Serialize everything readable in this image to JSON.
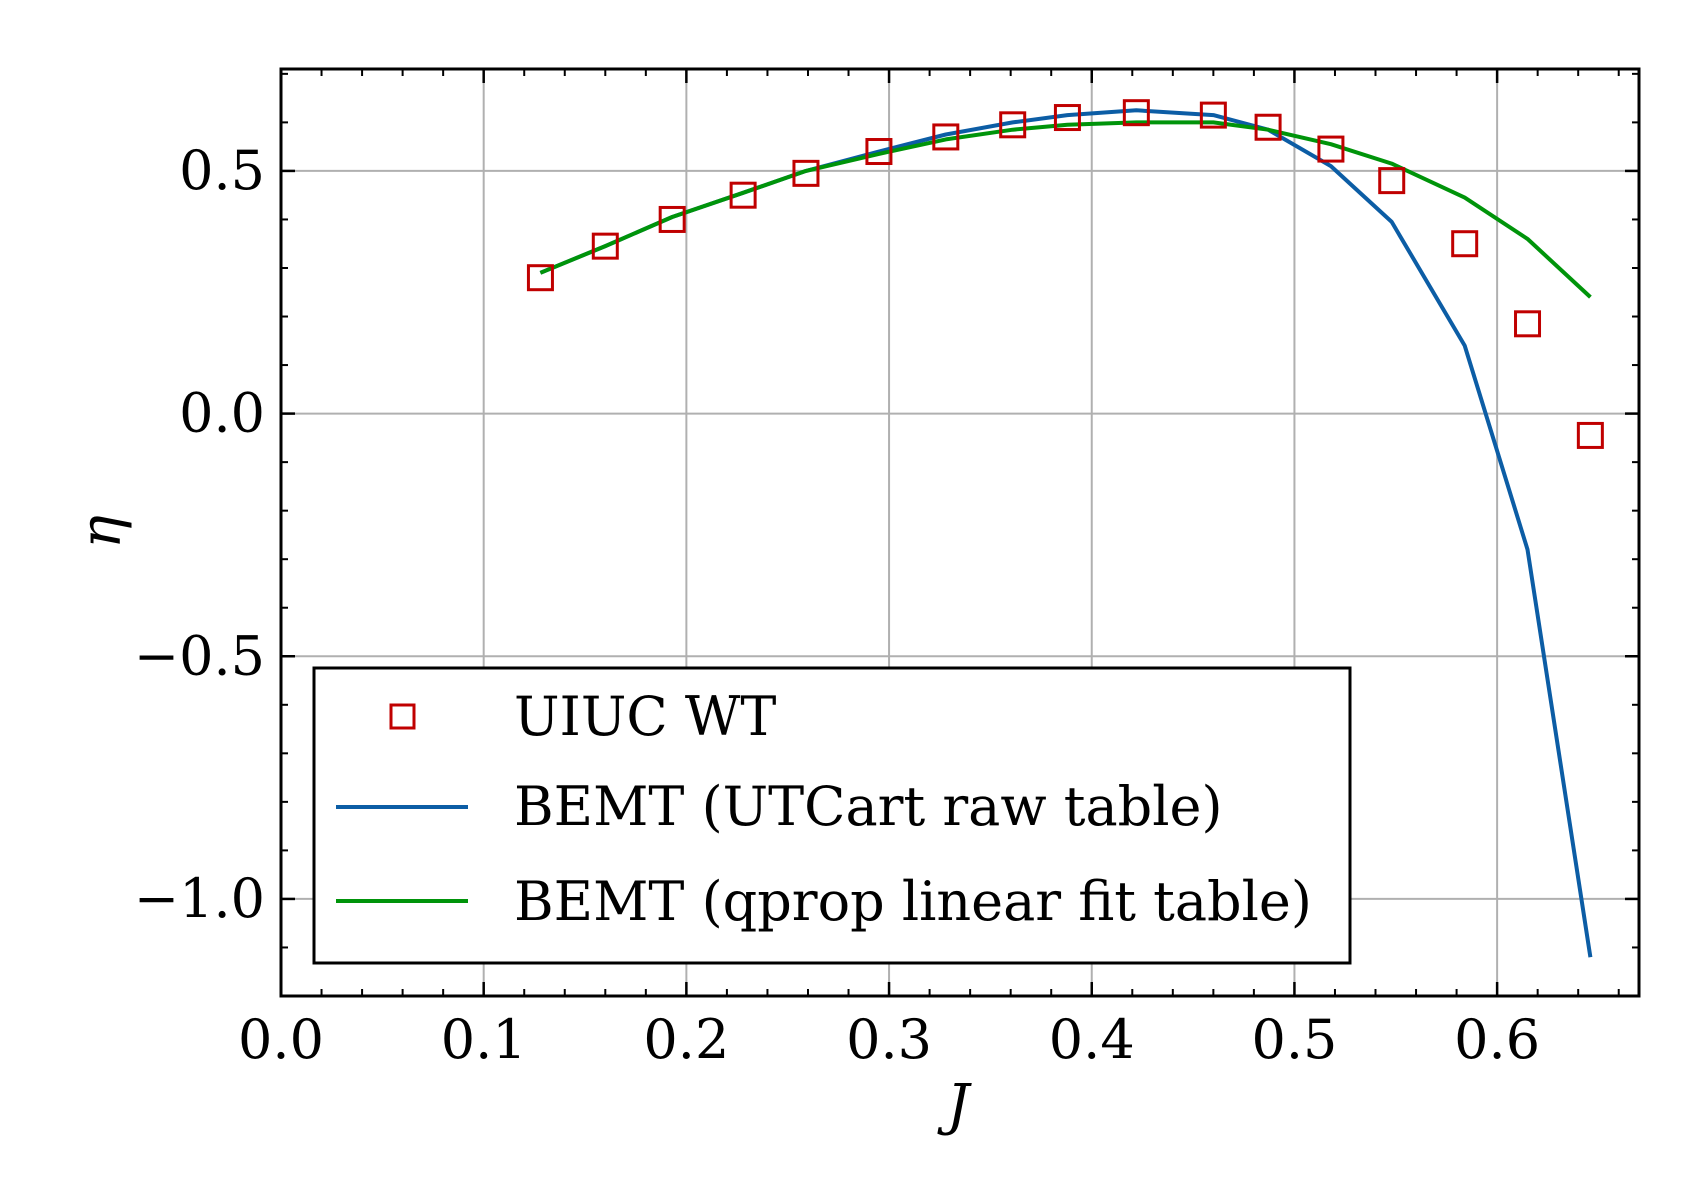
{
  "chart_data": {
    "type": "line",
    "xlabel": "J",
    "ylabel": "η",
    "xlim": [
      0.0,
      0.67
    ],
    "ylim": [
      -1.2,
      0.71
    ],
    "xticks": [
      0.0,
      0.1,
      0.2,
      0.3,
      0.4,
      0.5,
      0.6
    ],
    "xtick_labels": [
      "0.0",
      "0.1",
      "0.2",
      "0.3",
      "0.4",
      "0.5",
      "0.6"
    ],
    "yticks": [
      -1.0,
      -0.5,
      0.0,
      0.5
    ],
    "ytick_labels": [
      "−1.0",
      "−0.5",
      "0.0",
      "0.5"
    ],
    "grid": true,
    "legend_position": "lower-left",
    "series": [
      {
        "name": "UIUC WT",
        "kind": "scatter",
        "marker": "square-open",
        "color": "#c00000",
        "x": [
          0.128,
          0.16,
          0.193,
          0.228,
          0.259,
          0.295,
          0.328,
          0.361,
          0.388,
          0.422,
          0.46,
          0.487,
          0.518,
          0.548,
          0.584,
          0.615,
          0.646
        ],
        "y": [
          0.28,
          0.345,
          0.4,
          0.45,
          0.495,
          0.54,
          0.57,
          0.595,
          0.61,
          0.62,
          0.615,
          0.59,
          0.545,
          0.48,
          0.35,
          0.185,
          -0.045
        ]
      },
      {
        "name": "BEMT (UTCart raw table)",
        "kind": "line",
        "color": "#0c5da5",
        "x": [
          0.128,
          0.16,
          0.193,
          0.228,
          0.259,
          0.295,
          0.328,
          0.361,
          0.388,
          0.422,
          0.46,
          0.487,
          0.518,
          0.548,
          0.584,
          0.615,
          0.646
        ],
        "y": [
          0.29,
          0.345,
          0.405,
          0.455,
          0.5,
          0.54,
          0.575,
          0.6,
          0.615,
          0.625,
          0.615,
          0.585,
          0.51,
          0.395,
          0.14,
          -0.28,
          -1.12
        ]
      },
      {
        "name": "BEMT (qprop linear fit table)",
        "kind": "line",
        "color": "#00940a",
        "x": [
          0.128,
          0.16,
          0.193,
          0.228,
          0.259,
          0.295,
          0.328,
          0.361,
          0.388,
          0.422,
          0.46,
          0.487,
          0.518,
          0.548,
          0.584,
          0.615,
          0.646
        ],
        "y": [
          0.29,
          0.345,
          0.405,
          0.455,
          0.5,
          0.535,
          0.565,
          0.585,
          0.595,
          0.6,
          0.6,
          0.585,
          0.555,
          0.515,
          0.445,
          0.36,
          0.24
        ]
      }
    ]
  }
}
